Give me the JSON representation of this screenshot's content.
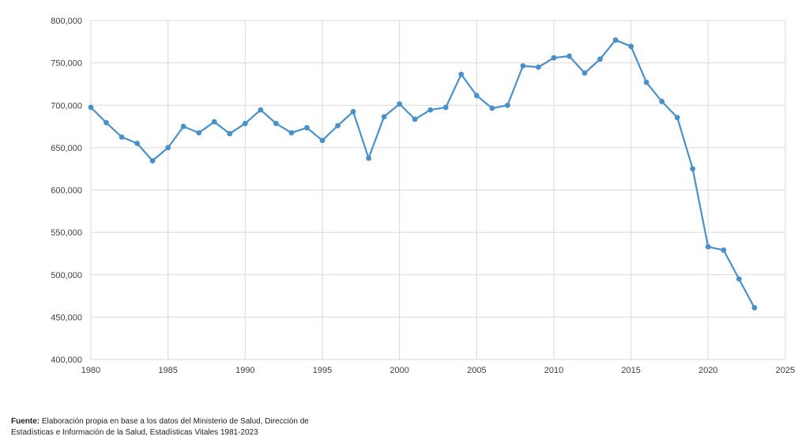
{
  "chart_data": {
    "type": "line",
    "title": "",
    "xlabel": "",
    "ylabel": "",
    "xlim": [
      1980,
      2025
    ],
    "ylim": [
      400000,
      800000
    ],
    "x_ticks": [
      1980,
      1985,
      1990,
      1995,
      2000,
      2005,
      2010,
      2015,
      2020,
      2025
    ],
    "x_tick_labels": [
      "1980",
      "1985",
      "1990",
      "1995",
      "2000",
      "2005",
      "2010",
      "2015",
      "2020",
      "2025"
    ],
    "y_ticks": [
      400000,
      450000,
      500000,
      550000,
      600000,
      650000,
      700000,
      750000,
      800000
    ],
    "y_tick_labels": [
      "400,000",
      "450,000",
      "500,000",
      "550,000",
      "600,000",
      "650,000",
      "700,000",
      "750,000",
      "800,000"
    ],
    "grid": true,
    "legend": "none",
    "series": [
      {
        "color": "#4a90c8",
        "x": [
          1980,
          1981,
          1982,
          1983,
          1984,
          1985,
          1986,
          1987,
          1988,
          1989,
          1990,
          1991,
          1992,
          1993,
          1994,
          1995,
          1996,
          1997,
          1998,
          1999,
          2000,
          2001,
          2002,
          2003,
          2004,
          2005,
          2006,
          2007,
          2008,
          2009,
          2010,
          2011,
          2012,
          2013,
          2014,
          2015,
          2016,
          2017,
          2018,
          2019,
          2020,
          2021,
          2022,
          2023
        ],
        "values": [
          697500,
          679500,
          662500,
          655000,
          634500,
          650000,
          675000,
          667500,
          680500,
          666500,
          678500,
          694500,
          678500,
          667500,
          673500,
          658500,
          676000,
          692500,
          637500,
          686500,
          701500,
          683500,
          694500,
          697500,
          736500,
          711500,
          696500,
          700000,
          746500,
          745000,
          756000,
          758000,
          738000,
          754500,
          777000,
          769500,
          727000,
          704500,
          685500,
          625000,
          533000,
          529000,
          495000,
          461000
        ]
      }
    ]
  },
  "footer": {
    "source_label": "Fuente:",
    "source_line1": " Elaboración propia en base a los datos del Ministerio de Salud, Dirección de",
    "source_line2": "Estadísticas e Información de la Salud, Estadísticas Vitales 1981-2023"
  }
}
